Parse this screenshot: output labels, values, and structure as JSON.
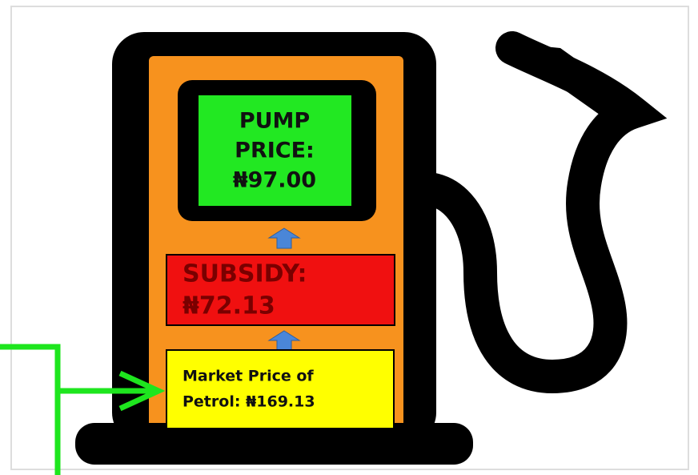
{
  "pump_price": {
    "lines": [
      "PUMP",
      "PRICE:",
      "₦97.00"
    ]
  },
  "subsidy": {
    "lines": [
      "SUBSIDY:",
      "₦72.13"
    ]
  },
  "market_price": {
    "lines": [
      "Market Price of",
      "Petrol: ₦169.13"
    ]
  }
}
